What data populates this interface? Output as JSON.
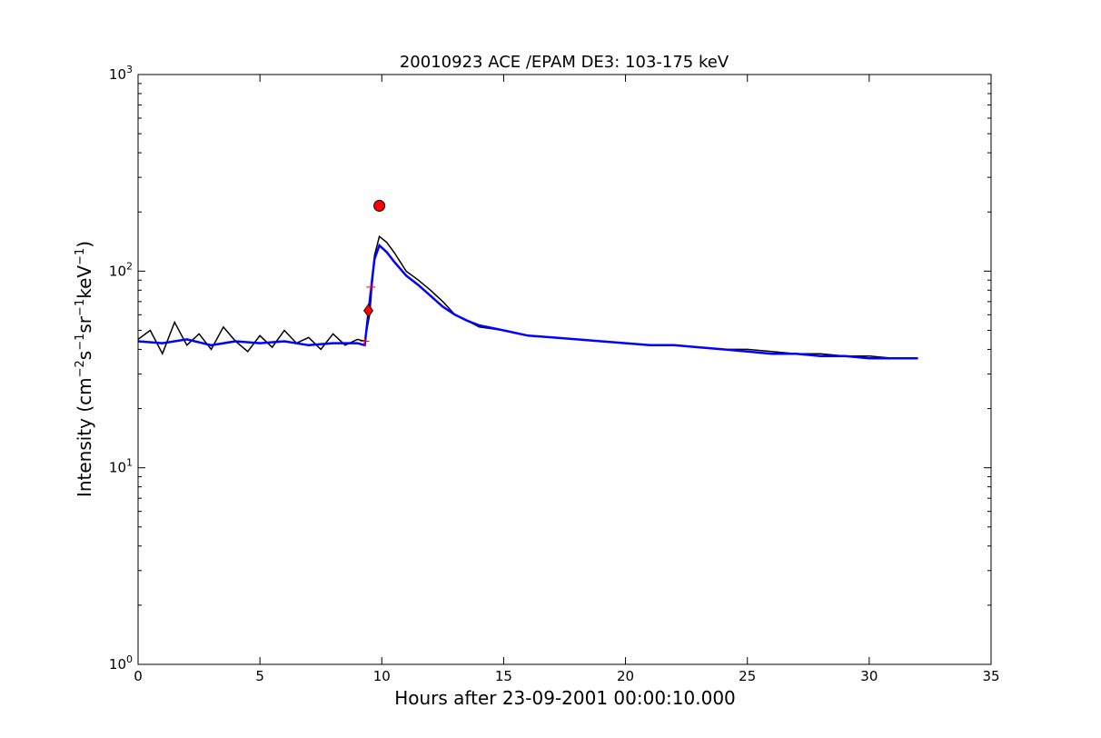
{
  "chart_data": {
    "type": "line",
    "title": "20010923 ACE /EPAM DE3: 103-175 keV",
    "xlabel": "Hours after 23-09-2001 00:00:10.000",
    "ylabel_main": "Intensity (cm",
    "ylabel_parts": [
      {
        "text": "Intensity (cm",
        "sup": false
      },
      {
        "text": "−2",
        "sup": true
      },
      {
        "text": "s",
        "sup": false
      },
      {
        "text": "−1",
        "sup": true
      },
      {
        "text": "sr",
        "sup": false
      },
      {
        "text": "−1",
        "sup": true
      },
      {
        "text": "keV",
        "sup": false
      },
      {
        "text": "−1",
        "sup": true
      },
      {
        "text": ")",
        "sup": false
      }
    ],
    "x_scale": "linear",
    "y_scale": "log",
    "xlim": [
      0,
      35
    ],
    "ylim": [
      1,
      1000
    ],
    "x_ticks": [
      0,
      5,
      10,
      15,
      20,
      25,
      30,
      35
    ],
    "x_tick_labels": [
      "0",
      "5",
      "10",
      "15",
      "20",
      "25",
      "30",
      "35"
    ],
    "y_ticks": [
      1,
      10,
      100,
      1000
    ],
    "y_tick_labels": [
      {
        "base": "10",
        "exp": "0"
      },
      {
        "base": "10",
        "exp": "1"
      },
      {
        "base": "10",
        "exp": "2"
      },
      {
        "base": "10",
        "exp": "3"
      }
    ],
    "grid": false,
    "colors": {
      "raw": "#000000",
      "smoothed": "#0000ff",
      "marker": "#ff0000"
    },
    "series": [
      {
        "role": "raw intensity",
        "color": "#000000",
        "x": [
          0,
          0.5,
          1,
          1.5,
          2,
          2.5,
          3,
          3.5,
          4,
          4.5,
          5,
          5.5,
          6,
          6.5,
          7,
          7.5,
          8,
          8.5,
          9,
          9.3,
          9.5,
          9.7,
          9.9,
          10.2,
          10.5,
          11,
          11.5,
          12,
          12.5,
          13,
          13.5,
          14,
          15,
          16,
          17,
          18,
          19,
          20,
          21,
          22,
          23,
          24,
          25,
          26,
          27,
          28,
          29,
          30,
          31,
          32
        ],
        "y": [
          45,
          50,
          38,
          55,
          42,
          48,
          40,
          52,
          44,
          39,
          47,
          41,
          50,
          43,
          46,
          40,
          48,
          42,
          45,
          44,
          60,
          120,
          150,
          140,
          125,
          100,
          90,
          80,
          70,
          60,
          56,
          52,
          50,
          47,
          46,
          45,
          44,
          43,
          42,
          42,
          41,
          40,
          40,
          39,
          38,
          38,
          37,
          37,
          36,
          36
        ]
      },
      {
        "role": "smoothed intensity",
        "color": "#0000ff",
        "x": [
          0,
          1,
          2,
          3,
          4,
          5,
          6,
          7,
          8,
          9,
          9.3,
          9.5,
          9.7,
          9.9,
          10.2,
          10.5,
          11,
          11.5,
          12,
          12.5,
          13,
          13.5,
          14,
          15,
          16,
          17,
          18,
          19,
          20,
          21,
          22,
          23,
          24,
          25,
          26,
          27,
          28,
          29,
          30,
          31,
          32
        ],
        "y": [
          44,
          43,
          45,
          42,
          44,
          43,
          44,
          42,
          43,
          43,
          42,
          70,
          115,
          135,
          125,
          112,
          95,
          85,
          75,
          66,
          60,
          56,
          53,
          50,
          47,
          46,
          45,
          44,
          43,
          42,
          42,
          41,
          40,
          39,
          38,
          38,
          37,
          37,
          36,
          36,
          36
        ]
      }
    ],
    "markers": [
      {
        "shape": "circle",
        "x": 9.9,
        "y": 215
      },
      {
        "shape": "diamond",
        "x": 9.45,
        "y": 63
      },
      {
        "shape": "plus",
        "x": 9.3,
        "y": 44
      },
      {
        "shape": "plus",
        "x": 9.55,
        "y": 83
      }
    ]
  }
}
